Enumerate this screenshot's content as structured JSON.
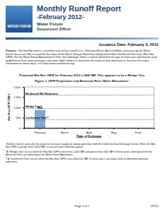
{
  "header": {
    "title": "Monthly Runoff Report",
    "subtitle": "-February 2012-",
    "org": "Water Forum",
    "org_sub": "Successor Effort",
    "logo": "WATER FORUM"
  },
  "issuance": "Issuance Date: February 9, 2012",
  "purpose": {
    "label": "Purpose:",
    "text": "This monthly report is issued for each of four months (i.e., February, March, April and May) every year by the Water Forum Successor Effort to provide the status of the March through November Unimpaired Inflow into Folsom Reservoir (Mar-Nov UIFR). Per the Water Forum Agreement of 2000, this hydrologic index is used to determine the type of water year and may be used by American River water purveyors and water rights holders to determine the extent of their diversions in that year. For more information on these topics, visit http://www.waterforum.org/."
  },
  "projection": "Projected Mar-Nov UIFR for February 2012 is 864 TAF. This appears to be a Wedge Year",
  "figure_caption": "Figure 1. UIFR Projections and American River Water Allocations¹",
  "chart_data": {
    "type": "bar",
    "y_label": "Mar-Nov UIFR (TAF)",
    "x_label": "Date of Estimate",
    "categories": [
      "February",
      "March",
      "April",
      "May",
      "Final"
    ],
    "values": [
      864,
      null,
      null,
      null,
      null
    ],
    "color": "#7fa7d6",
    "data_labels": true,
    "ylim": [
      0,
      2000
    ],
    "yticks": [
      0,
      500,
      {
        "value": 1000,
        "label": "1,000"
      },
      {
        "value": 1500,
        "label": "1,500"
      },
      {
        "value": 2000,
        "label": "2,000"
      }
    ],
    "thresholds": [
      {
        "label": "No Annual Wtr Reduction",
        "value": 1600
      },
      {
        "label": "Wedge Year*",
        "value": 950
      },
      {
        "label": "Conference Year**",
        "value": 400
      }
    ]
  },
  "notes": [
    "¹Numeric factors used after the projection of water supply are based upon data from the California Data Exchange Center. When the Mar-Nov UIFR is greater than 1,600 TAF, no annual water reduction applies.",
    "*A \"Wedge Year\" occurs when the Mar-Nov UIFR is less than 1,600 TAF and greater than 400 TAF. In these years, diversions from the American River are reduced per the Water Forum Agreement.",
    "**A \"Conference Year\" occurs when the Mar-Nov UIFR is less than 400 TAF. In these years, purveyors meet to determine diversion reductions."
  ],
  "footer": {
    "page": "Page 1 of 2",
    "date": "2/9/12"
  }
}
